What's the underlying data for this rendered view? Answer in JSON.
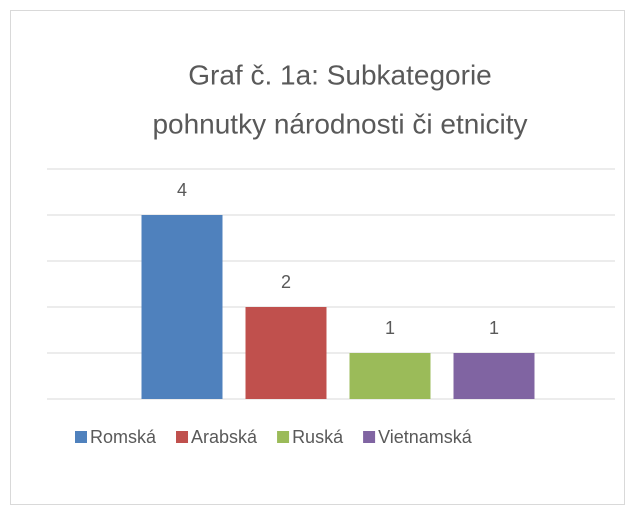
{
  "chart_data": {
    "type": "bar",
    "title_lines": [
      "Graf č. 1a: Subkategorie",
      "pohnutky národnosti či etnicity"
    ],
    "categories": [
      null
    ],
    "series": [
      {
        "name": "Romská",
        "color": "#4f81bd",
        "values": [
          4
        ]
      },
      {
        "name": "Arabská",
        "color": "#c0504d",
        "values": [
          2
        ]
      },
      {
        "name": "Ruská",
        "color": "#9bbb59",
        "values": [
          1
        ]
      },
      {
        "name": "Vietnamská",
        "color": "#8064a2",
        "values": [
          1
        ]
      }
    ],
    "ylim": [
      0,
      5
    ],
    "yticks": [
      0,
      1,
      2,
      3,
      4,
      5
    ],
    "grid": true,
    "legend": "bottom"
  }
}
